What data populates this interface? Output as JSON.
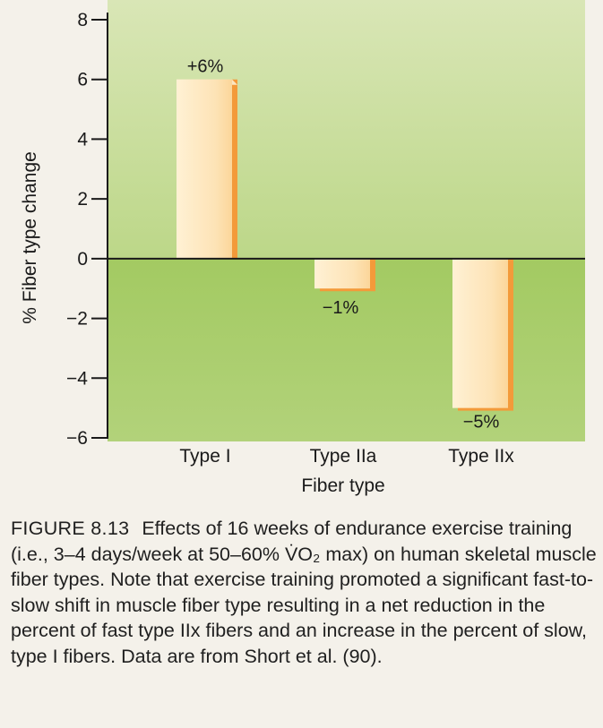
{
  "chart_data": {
    "type": "bar",
    "categories": [
      "Type I",
      "Type IIa",
      "Type IIx"
    ],
    "values": [
      6,
      -1,
      -5
    ],
    "data_labels": [
      "+6%",
      "−1%",
      "−5%"
    ],
    "xlabel": "Fiber type",
    "ylabel": "% Fiber type change",
    "ylim": [
      -6,
      8
    ],
    "yticks": [
      -6,
      -4,
      -2,
      0,
      2,
      4,
      6,
      8
    ],
    "ytick_labels": [
      "−6",
      "−4",
      "−2",
      "0",
      "2",
      "4",
      "6",
      "8"
    ],
    "grid": false,
    "legend": "none"
  },
  "caption": {
    "label": "FIGURE 8.13",
    "text": "Effects of 16 weeks of endurance exercise training (i.e., 3–4 days/week at 50–60% V̇O₂ max) on human skeletal muscle fiber types. Note that exercise training promoted a significant fast-to-slow shift in muscle fiber type resulting in a net reduction in the percent of fast type IIx fibers and an increase in the percent of slow, type I fibers. Data are from Short et al. (90)."
  },
  "colors": {
    "upper_panel": "#c9dd9c",
    "lower_panel": "#a8cd6a",
    "bar_face": "#fde3b6",
    "bar_edge": "#f0a04a",
    "axis": "#1a1a1a"
  }
}
